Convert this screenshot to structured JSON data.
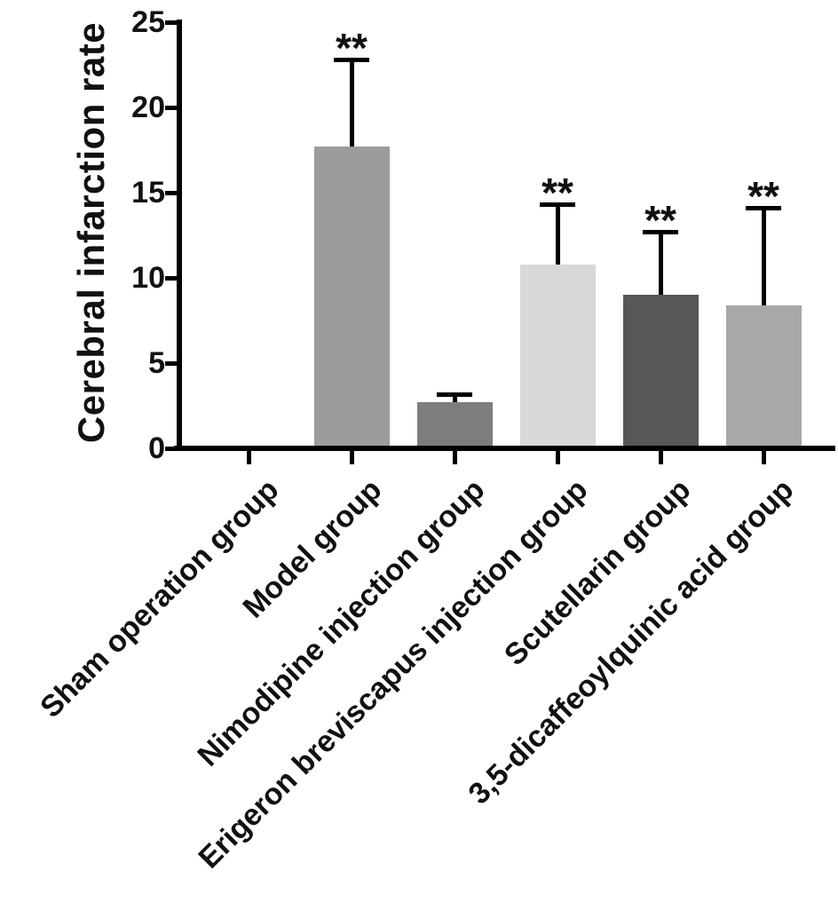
{
  "chart_data": {
    "type": "bar",
    "title": "",
    "ylabel": "Cerebral infarction rate",
    "xlabel": "",
    "ylim": [
      0,
      25
    ],
    "yticks": [
      0,
      5,
      10,
      15,
      20,
      25
    ],
    "grid": false,
    "legend": false,
    "categories": [
      "Sham operation group",
      "Model  group",
      "Nimodipine injection group",
      "Erigeron breviscapus injection group",
      "Scutellarin group",
      "3,5-dicaffeoylquinic acid group"
    ],
    "series": [
      {
        "name": "Cerebral infarction rate",
        "values": [
          0,
          17.7,
          2.7,
          10.8,
          9.0,
          8.4
        ],
        "sd_upper": [
          0,
          5.1,
          0.5,
          3.5,
          3.7,
          5.7
        ],
        "significance": [
          "",
          "**",
          "",
          "**",
          "**",
          "**"
        ]
      }
    ],
    "bar_colors": [
      "#ffffff",
      "#9c9c9c",
      "#7d7d7d",
      "#d8d8d8",
      "#575757",
      "#a8a8a8"
    ],
    "axis_color": "#000000",
    "error_bar_style": "upper-only-with-cap"
  }
}
